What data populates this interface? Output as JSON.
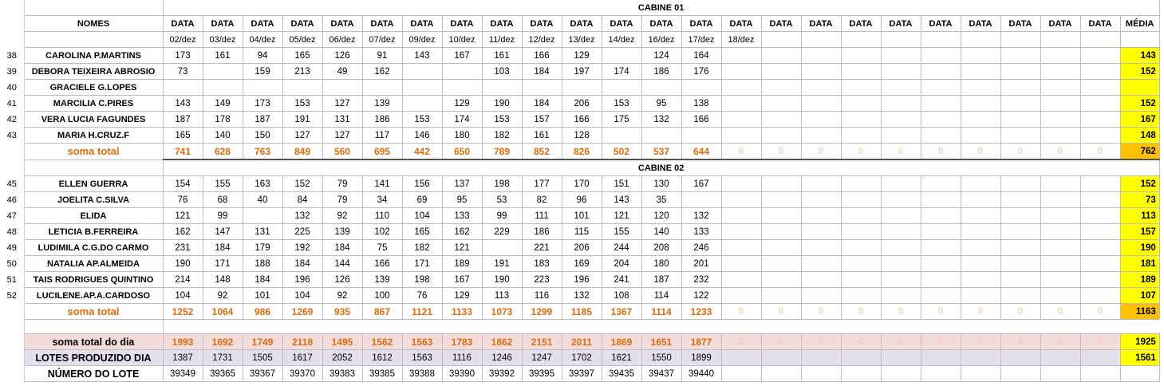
{
  "cabine1_title": "CABINE 01",
  "cabine2_title": "CABINE 02",
  "nomes_header": "NOMES",
  "data_label": "DATA",
  "media_label": "MÉDIA",
  "dates": [
    "02/dez",
    "03/dez",
    "04/dez",
    "05/dez",
    "06/dez",
    "07/dez",
    "09/dez",
    "10/dez",
    "11/dez",
    "12/dez",
    "13/dez",
    "14/dez",
    "16/dez",
    "17/dez",
    "18/dez",
    "",
    "",
    "",
    "",
    "",
    "",
    "",
    "",
    ""
  ],
  "cabine1_rows": [
    {
      "row": "38",
      "name": "CAROLINA P.MARTINS",
      "values": [
        "173",
        "161",
        "94",
        "165",
        "126",
        "91",
        "143",
        "167",
        "161",
        "166",
        "129",
        "",
        "124",
        "164"
      ],
      "media": "143"
    },
    {
      "row": "39",
      "name": "DEBORA TEIXEIRA ABROSIO",
      "values": [
        "73",
        "",
        "159",
        "213",
        "49",
        "162",
        "",
        "",
        "103",
        "184",
        "197",
        "174",
        "186",
        "176"
      ],
      "media": "152"
    },
    {
      "row": "40",
      "name": "GRACIELE G.LOPES",
      "values": [
        "",
        "",
        "",
        "",
        "",
        "",
        "",
        "",
        "",
        "",
        "",
        "",
        "",
        ""
      ],
      "media": ""
    },
    {
      "row": "41",
      "name": "MARCILIA C.PIRES",
      "values": [
        "143",
        "149",
        "173",
        "153",
        "127",
        "139",
        "",
        "129",
        "190",
        "184",
        "206",
        "153",
        "95",
        "138"
      ],
      "media": "152"
    },
    {
      "row": "42",
      "name": "VERA LUCIA FAGUNDES",
      "values": [
        "187",
        "178",
        "187",
        "191",
        "131",
        "186",
        "153",
        "174",
        "153",
        "157",
        "166",
        "175",
        "132",
        "166"
      ],
      "media": "167"
    },
    {
      "row": "43",
      "name": "MARIA H.CRUZ.F",
      "values": [
        "165",
        "140",
        "150",
        "127",
        "127",
        "117",
        "146",
        "180",
        "182",
        "161",
        "128",
        "",
        "",
        ""
      ],
      "media": "148"
    }
  ],
  "cabine1_soma": {
    "label": "soma total",
    "values": [
      "741",
      "628",
      "763",
      "849",
      "560",
      "695",
      "442",
      "650",
      "789",
      "852",
      "826",
      "502",
      "537",
      "644"
    ],
    "media": "762"
  },
  "cabine2_rows": [
    {
      "row": "45",
      "name": "ELLEN GUERRA",
      "values": [
        "154",
        "155",
        "163",
        "152",
        "79",
        "141",
        "156",
        "137",
        "198",
        "177",
        "170",
        "151",
        "130",
        "167"
      ],
      "media": "152"
    },
    {
      "row": "46",
      "name": "JOELITA C.SILVA",
      "values": [
        "76",
        "68",
        "40",
        "84",
        "79",
        "34",
        "69",
        "95",
        "53",
        "82",
        "96",
        "143",
        "35",
        ""
      ],
      "media": "73"
    },
    {
      "row": "47",
      "name": "ELIDA",
      "values": [
        "121",
        "99",
        "",
        "132",
        "92",
        "110",
        "104",
        "133",
        "99",
        "111",
        "101",
        "121",
        "120",
        "132"
      ],
      "media": "113"
    },
    {
      "row": "48",
      "name": "LETICIA B.FERREIRA",
      "values": [
        "162",
        "147",
        "131",
        "225",
        "139",
        "102",
        "165",
        "162",
        "229",
        "186",
        "115",
        "155",
        "140",
        "133"
      ],
      "media": "157"
    },
    {
      "row": "49",
      "name": "LUDIMILA C.G.DO CARMO",
      "values": [
        "231",
        "184",
        "179",
        "192",
        "184",
        "75",
        "182",
        "121",
        "",
        "221",
        "206",
        "244",
        "208",
        "246"
      ],
      "media": "190"
    },
    {
      "row": "50",
      "name": "NATALIA AP.ALMEIDA",
      "values": [
        "190",
        "171",
        "188",
        "184",
        "144",
        "166",
        "171",
        "189",
        "191",
        "183",
        "169",
        "204",
        "180",
        "201"
      ],
      "media": "181"
    },
    {
      "row": "51",
      "name": "TAIS RODRIGUES QUINTINO",
      "values": [
        "214",
        "148",
        "184",
        "196",
        "126",
        "139",
        "198",
        "167",
        "190",
        "223",
        "196",
        "241",
        "187",
        "232"
      ],
      "media": "189"
    },
    {
      "row": "52",
      "name": "LUCILENE.AP.A.CARDOSO",
      "values": [
        "104",
        "92",
        "101",
        "104",
        "92",
        "100",
        "76",
        "129",
        "113",
        "116",
        "132",
        "108",
        "114",
        "122"
      ],
      "media": "107"
    }
  ],
  "cabine2_soma": {
    "label": "soma total",
    "values": [
      "1252",
      "1064",
      "986",
      "1269",
      "935",
      "867",
      "1121",
      "1133",
      "1073",
      "1299",
      "1185",
      "1367",
      "1114",
      "1233"
    ],
    "media": "1163"
  },
  "soma_dia": {
    "label": "soma total  do dia",
    "values": [
      "1993",
      "1692",
      "1749",
      "2118",
      "1495",
      "1562",
      "1563",
      "1783",
      "1862",
      "2151",
      "2011",
      "1869",
      "1651",
      "1877"
    ],
    "media": "1925"
  },
  "lotes": {
    "label": "LOTES PRODUZIDO DIA",
    "values": [
      "1387",
      "1731",
      "1505",
      "1617",
      "2052",
      "1612",
      "1563",
      "1116",
      "1246",
      "1247",
      "1702",
      "1621",
      "1550",
      "1899"
    ],
    "media": "1561"
  },
  "numero_lote": {
    "label": "NÚMERO DO LOTE",
    "values": [
      "39349",
      "39365",
      "39367",
      "39370",
      "39383",
      "39385",
      "39388",
      "39390",
      "39392",
      "39395",
      "39397",
      "39435",
      "39437",
      "39440"
    ]
  },
  "zero": "0"
}
